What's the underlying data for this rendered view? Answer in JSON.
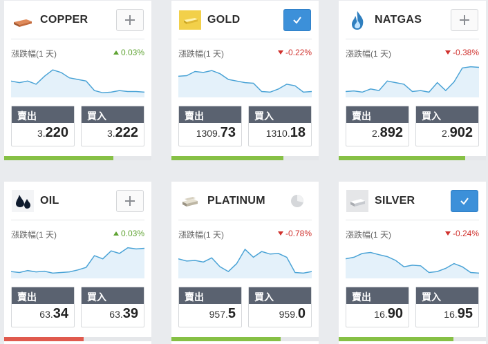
{
  "labels": {
    "change": "漲跌幅(1 天)",
    "sell": "賣出",
    "buy": "買入"
  },
  "colors": {
    "up": "#5fa332",
    "down": "#d0312d",
    "chart_line": "#4aa3d6",
    "chart_fill": "#e4f1fa",
    "check_button": "#3c90d9"
  },
  "instruments": [
    {
      "name": "COPPER",
      "icon": "copper-ingot-icon",
      "action": "add",
      "change": "0.03%",
      "direction": "up",
      "sell_small": "3.",
      "sell_big": "220",
      "buy_small": "3.",
      "buy_big": "222",
      "sentiment_pct": 74,
      "sparkline": [
        0.45,
        0.4,
        0.45,
        0.35,
        0.6,
        0.8,
        0.72,
        0.55,
        0.5,
        0.45,
        0.15,
        0.08,
        0.1,
        0.15,
        0.12,
        0.12,
        0.1
      ]
    },
    {
      "name": "GOLD",
      "icon": "gold-bar-icon",
      "action": "checked",
      "change": "-0.22%",
      "direction": "down",
      "sell_small": "1309.",
      "sell_big": "73",
      "buy_small": "1310.",
      "buy_big": "18",
      "sentiment_pct": 76,
      "sparkline": [
        0.6,
        0.62,
        0.75,
        0.72,
        0.78,
        0.68,
        0.5,
        0.45,
        0.4,
        0.38,
        0.12,
        0.1,
        0.2,
        0.35,
        0.3,
        0.1,
        0.12
      ]
    },
    {
      "name": "NATGAS",
      "icon": "gas-flame-icon",
      "action": "add",
      "change": "-0.38%",
      "direction": "down",
      "sell_small": "2.",
      "sell_big": "892",
      "buy_small": "2.",
      "buy_big": "902",
      "sentiment_pct": 86,
      "sparkline": [
        0.12,
        0.14,
        0.1,
        0.2,
        0.15,
        0.45,
        0.4,
        0.35,
        0.12,
        0.15,
        0.1,
        0.4,
        0.15,
        0.42,
        0.86,
        0.9,
        0.88
      ]
    },
    {
      "name": "OIL",
      "icon": "oil-drops-icon",
      "action": "add",
      "change": "0.03%",
      "direction": "up",
      "sell_small": "63.",
      "sell_big": "34",
      "buy_small": "63.",
      "buy_big": "39",
      "sentiment_pct": 54,
      "sparkline": [
        0.15,
        0.12,
        0.18,
        0.14,
        0.16,
        0.1,
        0.12,
        0.14,
        0.2,
        0.28,
        0.65,
        0.55,
        0.8,
        0.72,
        0.9,
        0.86,
        0.88
      ]
    },
    {
      "name": "PLATINUM",
      "icon": "platinum-bar-icon",
      "action": "pie",
      "change": "-0.78%",
      "direction": "down",
      "sell_small": "957.",
      "sell_big": "5",
      "buy_small": "959.",
      "buy_big": "0",
      "sentiment_pct": 74,
      "sparkline": [
        0.55,
        0.48,
        0.5,
        0.45,
        0.58,
        0.3,
        0.15,
        0.4,
        0.85,
        0.6,
        0.78,
        0.7,
        0.72,
        0.6,
        0.12,
        0.1,
        0.15
      ]
    },
    {
      "name": "SILVER",
      "icon": "silver-bar-icon",
      "action": "checked",
      "change": "-0.24%",
      "direction": "down",
      "sell_small": "16.",
      "sell_big": "90",
      "buy_small": "16.",
      "buy_big": "95",
      "sentiment_pct": 78,
      "sparkline": [
        0.55,
        0.6,
        0.72,
        0.75,
        0.68,
        0.62,
        0.5,
        0.3,
        0.35,
        0.33,
        0.12,
        0.15,
        0.25,
        0.4,
        0.3,
        0.12,
        0.1
      ]
    }
  ]
}
